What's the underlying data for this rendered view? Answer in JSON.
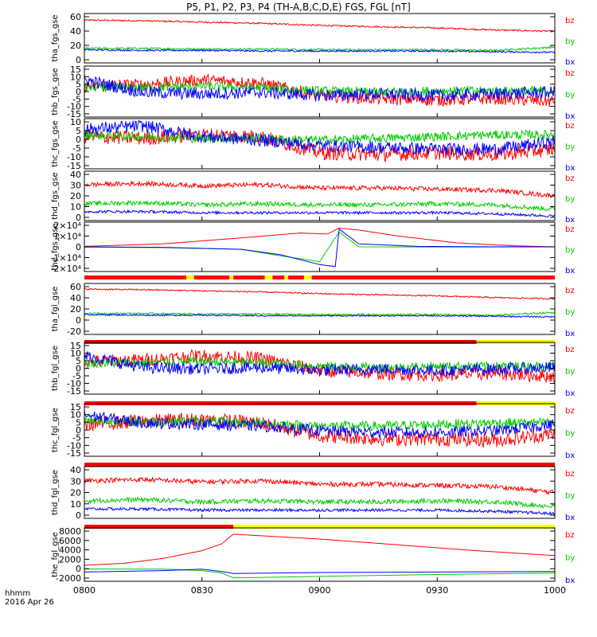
{
  "title": "P5, P1, P2, P3, P4 (TH-A,B,C,D,E) FGS, FGL [nT]",
  "footer": {
    "line1": "hhmm",
    "line2": "2016 Apr 26"
  },
  "colors": {
    "bz": "#ff0000",
    "by": "#00cc00",
    "bx": "#0000ff",
    "quality_bar_red": "#ff0000",
    "quality_bar_yellow": "#ffff00",
    "frame": "#000000"
  },
  "chart_data": {
    "type": "line",
    "x_axis": {
      "range": [
        "0800",
        "1000"
      ],
      "tick_labels": [
        "0800",
        "0830",
        "0900",
        "0930",
        "1000"
      ],
      "tick_minutes": [
        0,
        30,
        60,
        90,
        120
      ]
    },
    "panels": [
      {
        "ylabel": "tha_fgs_gse",
        "yticks": [
          "60",
          "40",
          "20",
          "0"
        ],
        "ylim": [
          -10,
          65
        ],
        "legend": [
          "bz",
          "by",
          "bx"
        ],
        "series": [
          {
            "name": "bz",
            "baseline": [
              55,
              54,
              52,
              50,
              47,
              45,
              43,
              40,
              38
            ],
            "noise": 1.2
          },
          {
            "name": "by",
            "baseline": [
              12,
              12,
              11,
              11,
              10,
              10,
              10,
              9,
              14
            ],
            "noise": 1.5
          },
          {
            "name": "bx",
            "baseline": [
              10,
              9,
              9,
              8,
              8,
              8,
              8,
              7,
              6
            ],
            "noise": 1.2
          }
        ]
      },
      {
        "ylabel": "thb_fgs_gse",
        "yticks": [
          "15",
          "10",
          "5",
          "0",
          "-5",
          "-10",
          "-15"
        ],
        "ylim": [
          -16,
          17
        ],
        "legend": [
          "bz",
          "by",
          "bx"
        ],
        "series": [
          {
            "name": "bz",
            "baseline": [
              4,
              5,
              8,
              6,
              -2,
              -4,
              -5,
              -4,
              -6
            ],
            "noise": 4
          },
          {
            "name": "by",
            "baseline": [
              3,
              3,
              4,
              3,
              1,
              0,
              1,
              1,
              1
            ],
            "noise": 3
          },
          {
            "name": "bx",
            "baseline": [
              8,
              0,
              -1,
              0,
              -2,
              -1,
              -2,
              -1,
              0
            ],
            "noise": 4
          }
        ]
      },
      {
        "ylabel": "thc_fgs_gse",
        "yticks": [
          "10",
          "5",
          "0",
          "-5",
          "-10",
          "-15"
        ],
        "ylim": [
          -16,
          12
        ],
        "legend": [
          "bz",
          "by",
          "bx"
        ],
        "series": [
          {
            "name": "bz",
            "baseline": [
              2,
              1,
              3,
              2,
              -7,
              -8,
              -7,
              -8,
              -5
            ],
            "noise": 4
          },
          {
            "name": "by",
            "baseline": [
              3,
              2,
              1,
              1,
              0,
              1,
              2,
              3,
              3
            ],
            "noise": 2.5
          },
          {
            "name": "bx",
            "baseline": [
              6,
              8,
              2,
              0,
              -3,
              -4,
              -5,
              -5,
              -1
            ],
            "noise": 3.5
          }
        ]
      },
      {
        "ylabel": "thd_fgs_gse",
        "yticks": [
          "40",
          "30",
          "20",
          "10",
          "0"
        ],
        "ylim": [
          -2,
          42
        ],
        "legend": [
          "bz",
          "by",
          "bx"
        ],
        "series": [
          {
            "name": "bz",
            "baseline": [
              30,
              31,
              29,
              30,
              27,
              27,
              26,
              25,
              20
            ],
            "noise": 2
          },
          {
            "name": "by",
            "baseline": [
              13,
              14,
              12,
              13,
              12,
              12,
              13,
              12,
              8
            ],
            "noise": 2
          },
          {
            "name": "bx",
            "baseline": [
              6,
              6,
              5,
              5,
              5,
              5,
              5,
              4,
              2
            ],
            "noise": 1.2
          }
        ]
      },
      {
        "ylabel": "the_fgs_gse",
        "yticks": [
          "2×10⁴",
          "1×10⁴",
          "0",
          "-1×10⁴",
          "-2×10⁴"
        ],
        "ylim": [
          -25000,
          25000
        ],
        "legend": [
          "bz",
          "by",
          "bx"
        ],
        "series": [
          {
            "name": "bz",
            "x_minutes": [
              0,
              20,
              40,
              55,
              62,
              65,
              70,
              80,
              95,
              110,
              120
            ],
            "values": [
              500,
              3000,
              9000,
              14000,
              13000,
              19000,
              17000,
              11000,
              4000,
              1000,
              0
            ]
          },
          {
            "name": "by",
            "x_minutes": [
              0,
              20,
              40,
              50,
              60,
              65,
              70,
              85,
              100,
              120
            ],
            "values": [
              -300,
              -800,
              -2500,
              -9000,
              -15000,
              15000,
              0,
              -200,
              -200,
              -100
            ]
          },
          {
            "name": "bx",
            "x_minutes": [
              0,
              20,
              40,
              50,
              60,
              64,
              65,
              70,
              85,
              100,
              120
            ],
            "values": [
              0,
              -500,
              -2500,
              -8000,
              -18000,
              -20000,
              18000,
              3000,
              500,
              100,
              0
            ]
          }
        ],
        "quality_bar": [
          {
            "from": 0,
            "to": 120,
            "color": "red"
          },
          {
            "from": 26,
            "to": 28,
            "color": "yellow"
          },
          {
            "from": 37,
            "to": 38,
            "color": "yellow"
          },
          {
            "from": 46,
            "to": 48,
            "color": "yellow"
          },
          {
            "from": 51,
            "to": 52,
            "color": "yellow"
          },
          {
            "from": 56,
            "to": 58,
            "color": "yellow"
          }
        ]
      },
      {
        "ylabel": "tha_fgl_gse",
        "yticks": [
          "60",
          "40",
          "20",
          "0",
          "-20"
        ],
        "ylim": [
          -25,
          65
        ],
        "legend": [
          "bz",
          "by",
          "bx"
        ],
        "series": [
          {
            "name": "bz",
            "baseline": [
              55,
              54,
              52,
              50,
              47,
              45,
              43,
              40,
              38
            ],
            "noise": 1.2
          },
          {
            "name": "by",
            "baseline": [
              12,
              12,
              11,
              11,
              10,
              10,
              10,
              9,
              14
            ],
            "noise": 1.5
          },
          {
            "name": "bx",
            "baseline": [
              10,
              9,
              9,
              8,
              8,
              8,
              8,
              7,
              6
            ],
            "noise": 1.2
          }
        ],
        "quality_bar": [
          {
            "from": 0,
            "to": 100,
            "color": "red"
          },
          {
            "from": 100,
            "to": 120,
            "color": "yellow"
          }
        ]
      },
      {
        "ylabel": "thb_fgl_gse",
        "yticks": [
          "15",
          "10",
          "5",
          "0",
          "-5",
          "-10",
          "-15"
        ],
        "ylim": [
          -18,
          17
        ],
        "legend": [
          "bz",
          "by",
          "bx"
        ],
        "series": [
          {
            "name": "bz",
            "baseline": [
              4,
              5,
              8,
              6,
              -2,
              -4,
              -5,
              -4,
              -6
            ],
            "noise": 4.5
          },
          {
            "name": "by",
            "baseline": [
              3,
              3,
              4,
              3,
              1,
              0,
              1,
              1,
              1
            ],
            "noise": 3
          },
          {
            "name": "bx",
            "baseline": [
              8,
              0,
              -1,
              0,
              -2,
              -1,
              -2,
              -1,
              0
            ],
            "noise": 4
          }
        ],
        "quality_bar": [
          {
            "from": 0,
            "to": 100,
            "color": "red"
          },
          {
            "from": 100,
            "to": 120,
            "color": "yellow"
          }
        ]
      },
      {
        "ylabel": "thc_fgl_gse",
        "yticks": [
          "15",
          "10",
          "5",
          "0",
          "-5",
          "-10",
          "-15"
        ],
        "ylim": [
          -18,
          15
        ],
        "legend": [
          "bz",
          "by",
          "bx"
        ],
        "series": [
          {
            "name": "bz",
            "baseline": [
              2,
              4,
              5,
              3,
              -5,
              -7,
              -7,
              -8,
              -4
            ],
            "noise": 4.5
          },
          {
            "name": "by",
            "baseline": [
              4,
              4,
              4,
              3,
              1,
              1,
              2,
              3,
              3
            ],
            "noise": 3
          },
          {
            "name": "bx",
            "baseline": [
              8,
              3,
              2,
              1,
              -2,
              -3,
              -3,
              -2,
              2
            ],
            "noise": 3.5
          }
        ],
        "quality_bar": [
          {
            "from": 0,
            "to": 120,
            "color": "red"
          }
        ]
      },
      {
        "ylabel": "thd_fgl_gse",
        "yticks": [
          "40",
          "30",
          "20",
          "10",
          "0"
        ],
        "ylim": [
          -2,
          42
        ],
        "legend": [
          "bz",
          "by",
          "bx"
        ],
        "series": [
          {
            "name": "bz",
            "baseline": [
              30,
              31,
              29,
              30,
              27,
              27,
              26,
              25,
              20
            ],
            "noise": 2
          },
          {
            "name": "by",
            "baseline": [
              13,
              14,
              12,
              13,
              12,
              12,
              13,
              12,
              8
            ],
            "noise": 2
          },
          {
            "name": "bx",
            "baseline": [
              6,
              6,
              5,
              5,
              5,
              5,
              5,
              4,
              2
            ],
            "noise": 1.2
          }
        ],
        "quality_bar": [
          {
            "from": 0,
            "to": 38,
            "color": "red"
          },
          {
            "from": 38,
            "to": 120,
            "color": "yellow"
          }
        ]
      },
      {
        "ylabel": "the_fgl_gse",
        "yticks": [
          "8000",
          "6000",
          "4000",
          "2000",
          "0",
          "-2000"
        ],
        "ylim": [
          -2500,
          8500
        ],
        "legend": [
          "bz",
          "by",
          "bx"
        ],
        "series": [
          {
            "name": "bz",
            "x_minutes": [
              0,
              10,
              20,
              30,
              35,
              38,
              60,
              80,
              100,
              120
            ],
            "values": [
              800,
              1200,
              2200,
              3800,
              5200,
              7200,
              6200,
              5000,
              3800,
              2800
            ]
          },
          {
            "name": "by",
            "x_minutes": [
              0,
              20,
              30,
              35,
              38,
              60,
              90,
              120
            ],
            "values": [
              50,
              0,
              -300,
              -800,
              -1800,
              -1500,
              -1100,
              -800
            ]
          },
          {
            "name": "bx",
            "x_minutes": [
              0,
              20,
              30,
              35,
              38,
              60,
              90,
              120
            ],
            "values": [
              -600,
              -300,
              0,
              -500,
              -900,
              -700,
              -600,
              -500
            ]
          }
        ]
      }
    ]
  }
}
